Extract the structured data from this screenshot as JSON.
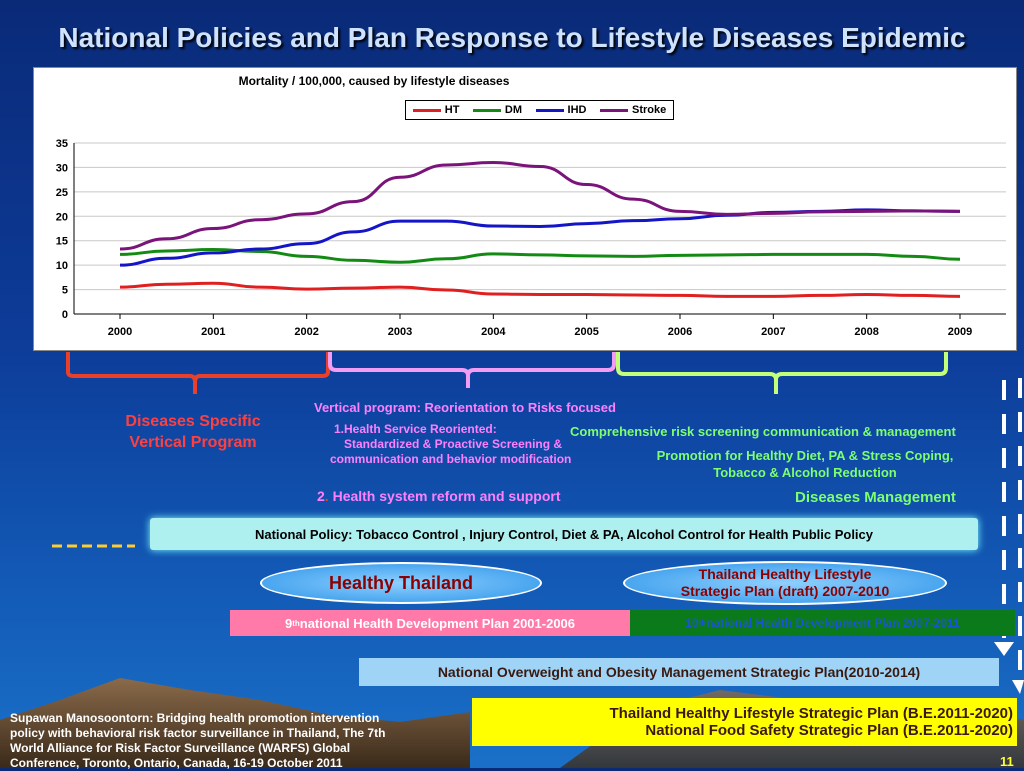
{
  "slide": {
    "title": "National Policies and Plan Response to Lifestyle Diseases Epidemic",
    "page_number": "11",
    "colors": {
      "background": "#0d3c99",
      "title": "#cfe3ff"
    }
  },
  "chart_data": {
    "type": "line",
    "title": "Mortality / 100,000, caused by lifestyle diseases",
    "xlabel": "",
    "ylabel": "",
    "x": [
      2000,
      2000.5,
      2001,
      2001.5,
      2002,
      2002.5,
      2003,
      2003.5,
      2004,
      2004.5,
      2005,
      2005.5,
      2006,
      2006.5,
      2007,
      2007.5,
      2008,
      2008.5,
      2009
    ],
    "x_ticks": [
      "2000",
      "2001",
      "2002",
      "2003",
      "2004",
      "2005",
      "2006",
      "2007",
      "2008",
      "2009"
    ],
    "y_ticks": [
      "0",
      "5",
      "10",
      "15",
      "20",
      "25",
      "30",
      "35"
    ],
    "ylim": [
      0,
      35
    ],
    "grid": true,
    "legend_position": "top",
    "series": [
      {
        "name": "HT",
        "color": "#e02020",
        "values": [
          5.5,
          6.1,
          6.3,
          5.5,
          5.1,
          5.3,
          5.5,
          4.9,
          4.1,
          4.0,
          4.0,
          3.9,
          3.8,
          3.6,
          3.6,
          3.8,
          4.0,
          3.8,
          3.6
        ]
      },
      {
        "name": "DM",
        "color": "#138a13",
        "values": [
          12.2,
          12.9,
          13.2,
          12.8,
          11.8,
          11.0,
          10.6,
          11.3,
          12.3,
          12.1,
          11.9,
          11.8,
          12.0,
          12.1,
          12.2,
          12.2,
          12.2,
          11.8,
          11.2
        ]
      },
      {
        "name": "IHD",
        "color": "#1515c8",
        "values": [
          10.0,
          11.4,
          12.5,
          13.3,
          14.4,
          16.8,
          19.0,
          19.0,
          18.0,
          17.9,
          18.5,
          19.1,
          19.5,
          20.2,
          20.8,
          21.0,
          21.3,
          21.1,
          21.0
        ]
      },
      {
        "name": "Stroke",
        "color": "#7a137a",
        "values": [
          13.3,
          15.4,
          17.5,
          19.3,
          20.5,
          23.0,
          28.0,
          30.5,
          31.0,
          30.2,
          26.5,
          23.5,
          21.0,
          20.4,
          20.6,
          20.9,
          21.0,
          21.1,
          21.0
        ]
      }
    ]
  },
  "phases": {
    "disease_specific": {
      "line1": "Diseases Specific",
      "line2": "Vertical Program"
    },
    "vertical_program": {
      "heading": "Vertical program: Reorientation to Risks focused",
      "item1_line1": "1.Health Service Reoriented:",
      "item1_line2": "Standardized  & Proactive Screening &",
      "item1_line3": "communication and behavior modification",
      "item2_num": "2",
      "item2_sep": ".",
      "item2_text": " Health system reform  and  support"
    },
    "comprehensive": {
      "line1": "Comprehensive risk screening communication & management",
      "line2": "Promotion for Healthy Diet, PA & Stress Coping,",
      "line3": "Tobacco & Alcohol Reduction",
      "line4": "Diseases Management"
    }
  },
  "policy_bar": {
    "text": "National Policy: Tobacco Control , Injury Control, Diet & PA, Alcohol Control for Health Public Policy"
  },
  "healthy_thailand": {
    "text": "Healthy Thailand"
  },
  "healthy_lifestyle_plan": {
    "line1": "Thailand  Healthy Lifestyle",
    "line2": "Strategic Plan (draft) 2007-2010"
  },
  "plan9": {
    "sup": "th",
    "num": "9",
    "text": " national Health Development Plan 2001-2006"
  },
  "plan10": {
    "sup": "th",
    "num": "10",
    "text": " national Health Development Plan   2007-2011"
  },
  "obesity_plan": {
    "text": "National Overweight and Obesity  Management Strategic Plan(2010-2014)"
  },
  "lifestyle_plan_2011": {
    "line1": "Thailand  Healthy Lifestyle Strategic Plan (B.E.2011-2020)",
    "line2": "National Food Safety Strategic Plan (B.E.2011-2020)"
  },
  "citation": {
    "line1": "Supawan Manosoontorn: Bridging health promotion intervention",
    "line2": "policy with behavioral risk factor surveillance in Thailand, The 7th",
    "line3": "World Alliance for Risk Factor Surveillance (WARFS) Global",
    "line4": "Conference, Toronto, Ontario, Canada, 16-19 October 2011"
  }
}
